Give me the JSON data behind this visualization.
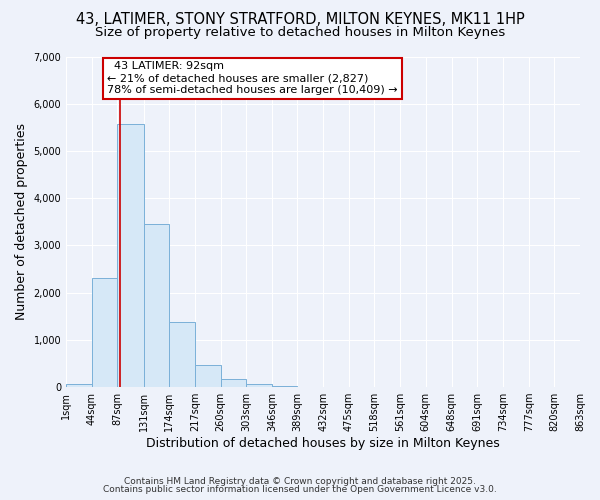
{
  "title_line1": "43, LATIMER, STONY STRATFORD, MILTON KEYNES, MK11 1HP",
  "title_line2": "Size of property relative to detached houses in Milton Keynes",
  "xlabel": "Distribution of detached houses by size in Milton Keynes",
  "ylabel": "Number of detached properties",
  "bar_values": [
    60,
    2300,
    5580,
    3450,
    1370,
    460,
    165,
    55,
    30,
    0,
    0,
    0,
    0,
    0,
    0,
    0,
    0,
    0,
    0,
    0
  ],
  "bin_edges": [
    1,
    44,
    87,
    131,
    174,
    217,
    260,
    303,
    346,
    389,
    432,
    475,
    518,
    561,
    604,
    648,
    691,
    734,
    777,
    820,
    863
  ],
  "tick_labels": [
    "1sqm",
    "44sqm",
    "87sqm",
    "131sqm",
    "174sqm",
    "217sqm",
    "260sqm",
    "303sqm",
    "346sqm",
    "389sqm",
    "432sqm",
    "475sqm",
    "518sqm",
    "561sqm",
    "604sqm",
    "648sqm",
    "691sqm",
    "734sqm",
    "777sqm",
    "820sqm",
    "863sqm"
  ],
  "bar_color": "#d6e8f7",
  "bar_edge_color": "#7ab0d8",
  "vline_x": 92,
  "vline_color": "#cc0000",
  "annotation_title": "43 LATIMER: 92sqm",
  "annotation_line2": "← 21% of detached houses are smaller (2,827)",
  "annotation_line3": "78% of semi-detached houses are larger (10,409) →",
  "annotation_box_color": "#ffffff",
  "annotation_box_edge": "#cc0000",
  "ylim": [
    0,
    7000
  ],
  "yticks": [
    0,
    1000,
    2000,
    3000,
    4000,
    5000,
    6000,
    7000
  ],
  "bg_color": "#eef2fa",
  "grid_color": "#ffffff",
  "footer_line1": "Contains HM Land Registry data © Crown copyright and database right 2025.",
  "footer_line2": "Contains public sector information licensed under the Open Government Licence v3.0.",
  "title_fontsize": 10.5,
  "subtitle_fontsize": 9.5,
  "axis_label_fontsize": 9,
  "tick_fontsize": 7,
  "annotation_fontsize": 8,
  "footer_fontsize": 6.5
}
